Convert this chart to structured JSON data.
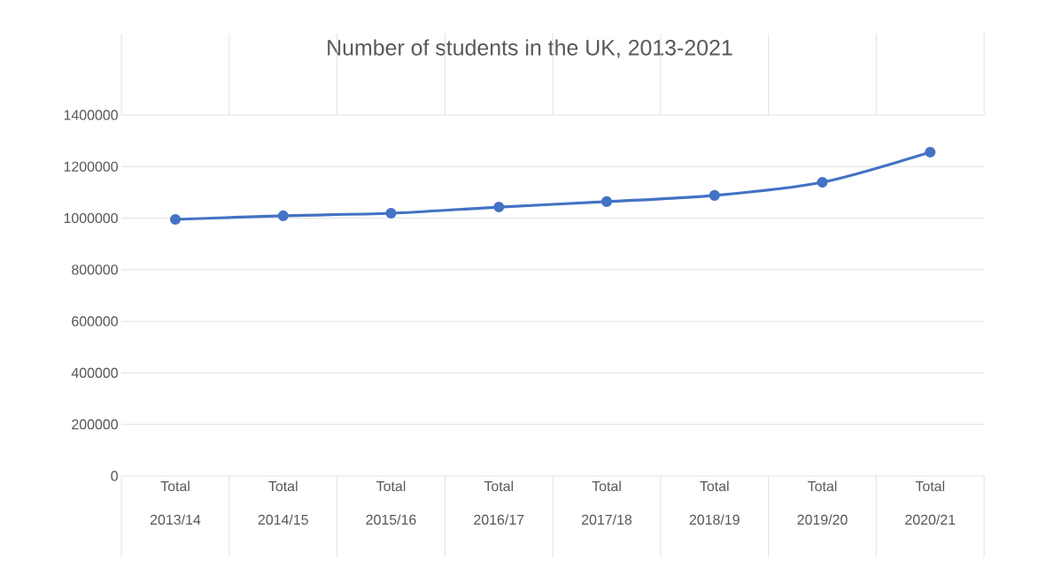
{
  "chart_data": {
    "type": "line",
    "title": "Number of students in the UK, 2013-2021",
    "categories": [
      "Total 2013/14",
      "Total 2014/15",
      "Total 2015/16",
      "Total 2016/17",
      "Total 2017/18",
      "Total 2018/19",
      "Total 2019/20",
      "Total 2020/21"
    ],
    "values": [
      995000,
      1009000,
      1019000,
      1043000,
      1064000,
      1088000,
      1139000,
      1256000
    ],
    "color": "#4472c4",
    "marker": "circle",
    "line_style": "solid",
    "ylim": [
      0,
      1400000
    ],
    "yticks": [
      0,
      200000,
      400000,
      600000,
      800000,
      1000000,
      1200000,
      1400000
    ],
    "grid": "y"
  }
}
